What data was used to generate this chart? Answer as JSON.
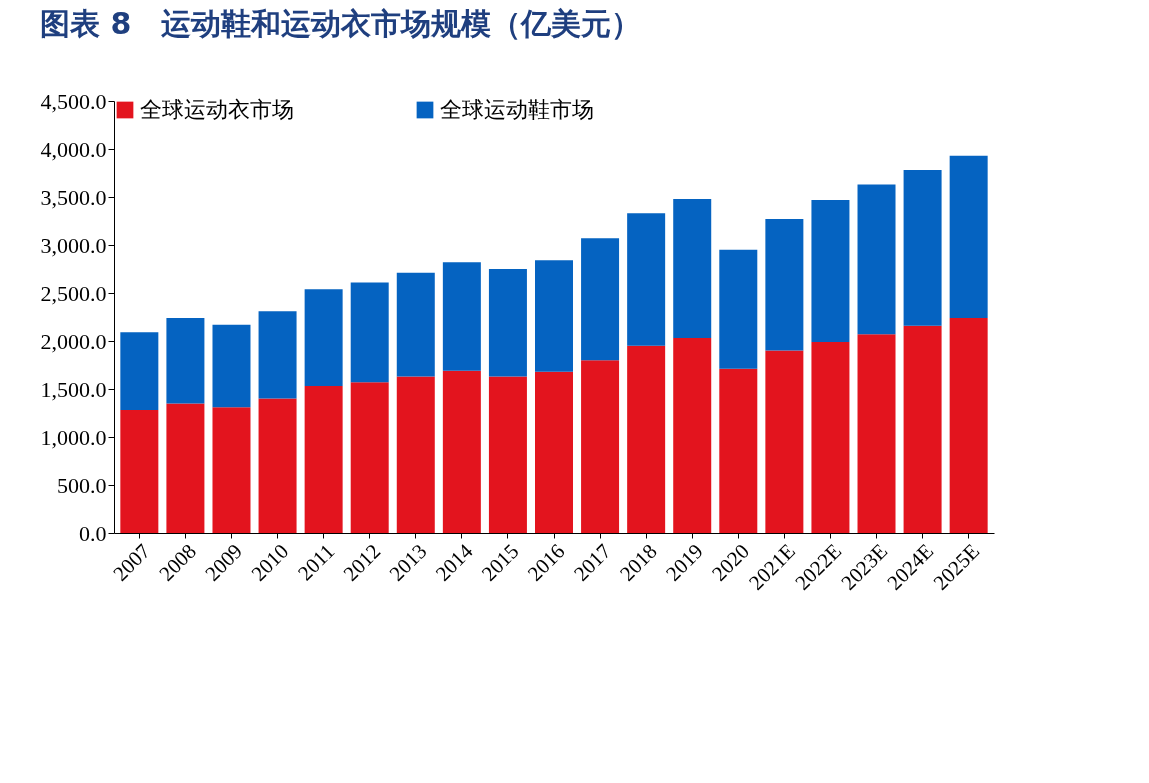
{
  "chart_data": {
    "type": "bar",
    "title": "图表 8　运动鞋和运动衣市场规模（亿美元）",
    "stacked": true,
    "legend": "top",
    "grid": false,
    "categories": [
      "2007",
      "2008",
      "2009",
      "2010",
      "2011",
      "2012",
      "2013",
      "2014",
      "2015",
      "2016",
      "2017",
      "2018",
      "2019",
      "2020",
      "2021E",
      "2022E",
      "2023E",
      "2024E",
      "2025E"
    ],
    "series": [
      {
        "name": "全球运动衣市场",
        "color": "#e3141e",
        "values": [
          1280,
          1350,
          1310,
          1400,
          1530,
          1570,
          1630,
          1690,
          1630,
          1680,
          1800,
          1950,
          2030,
          1710,
          1900,
          1990,
          2070,
          2160,
          2240
        ]
      },
      {
        "name": "全球运动鞋市场",
        "color": "#0563c1",
        "values": [
          810,
          890,
          860,
          910,
          1010,
          1040,
          1080,
          1130,
          1120,
          1160,
          1270,
          1380,
          1450,
          1240,
          1370,
          1480,
          1560,
          1620,
          1690
        ]
      }
    ],
    "ylim": [
      0,
      4500
    ],
    "yticks": [
      {
        "value": 0,
        "label": "0.0"
      },
      {
        "value": 500,
        "label": "500.0"
      },
      {
        "value": 1000,
        "label": "1,000.0"
      },
      {
        "value": 1500,
        "label": "1,500.0"
      },
      {
        "value": 2000,
        "label": "2,000.0"
      },
      {
        "value": 2500,
        "label": "2,500.0"
      },
      {
        "value": 3000,
        "label": "3,000.0"
      },
      {
        "value": 3500,
        "label": "3,500.0"
      },
      {
        "value": 4000,
        "label": "4,000.0"
      },
      {
        "value": 4500,
        "label": "4,500.0"
      }
    ]
  }
}
